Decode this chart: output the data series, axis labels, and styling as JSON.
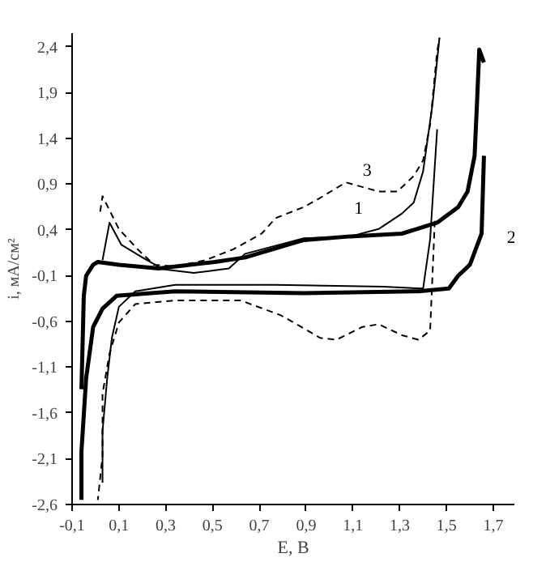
{
  "chart_data": {
    "type": "line",
    "xlabel": "E, B",
    "ylabel": "i, мА/см²",
    "grid": false,
    "legend": false,
    "marker": "none",
    "xlim": [
      -0.1,
      1.79
    ],
    "ylim": [
      -2.6,
      2.55
    ],
    "xticks": [
      {
        "value": -0.1,
        "label": "-0,1"
      },
      {
        "value": 0.1,
        "label": "0,1"
      },
      {
        "value": 0.3,
        "label": "0,3"
      },
      {
        "value": 0.5,
        "label": "0,5"
      },
      {
        "value": 0.7,
        "label": "0,7"
      },
      {
        "value": 0.9,
        "label": "0,9"
      },
      {
        "value": 1.1,
        "label": "1,1"
      },
      {
        "value": 1.3,
        "label": "1,3"
      },
      {
        "value": 1.5,
        "label": "1,5"
      },
      {
        "value": 1.7,
        "label": "1,7"
      }
    ],
    "yticks": [
      {
        "value": 2.4,
        "label": "2,4"
      },
      {
        "value": 1.9,
        "label": "1,9"
      },
      {
        "value": 1.4,
        "label": "1,4"
      },
      {
        "value": 0.9,
        "label": "0,9"
      },
      {
        "value": 0.4,
        "label": "0,4"
      },
      {
        "value": -0.1,
        "label": "-0,1"
      },
      {
        "value": -0.6,
        "label": "-0,6"
      },
      {
        "value": -1.1,
        "label": "-1,1"
      },
      {
        "value": -1.6,
        "label": "-1,6"
      },
      {
        "value": -2.1,
        "label": "-2,1"
      },
      {
        "value": -2.6,
        "label": "-2,6"
      }
    ],
    "series": [
      {
        "name": "1",
        "color": "#000000",
        "line_style": "solid",
        "x": [
          0.03,
          0.06,
          0.11,
          0.2,
          0.29,
          0.42,
          0.57,
          0.64,
          0.89,
          1.09,
          1.21,
          1.31,
          1.36,
          1.4,
          1.44,
          1.47
        ],
        "values": [
          0.07,
          0.48,
          0.24,
          0.1,
          -0.03,
          -0.07,
          -0.02,
          0.14,
          0.31,
          0.33,
          0.41,
          0.58,
          0.7,
          1.04,
          1.77,
          2.5
        ]
      },
      {
        "color": "#000000",
        "line_style": "solid",
        "x": [
          1.46,
          1.43,
          1.4,
          1.23,
          0.77,
          0.34,
          0.17,
          0.1,
          0.07,
          0.05,
          0.03,
          0.03
        ],
        "values": [
          1.5,
          0.3,
          -0.24,
          -0.22,
          -0.2,
          -0.2,
          -0.27,
          -0.44,
          -0.78,
          -1.22,
          -1.8,
          -2.36
        ]
      },
      {
        "name": "2",
        "color": "#000000",
        "line_style": "solid",
        "x": [
          -0.06,
          -0.05,
          -0.04,
          -0.01,
          0.01,
          0.1,
          0.27,
          0.51,
          0.64,
          0.89,
          1.09,
          1.31,
          1.46,
          1.55,
          1.59,
          1.62,
          1.63,
          1.64,
          1.66
        ],
        "values": [
          -1.34,
          -0.32,
          -0.1,
          0.02,
          0.05,
          0.02,
          -0.02,
          0.05,
          0.1,
          0.29,
          0.33,
          0.36,
          0.48,
          0.65,
          0.82,
          1.21,
          1.77,
          2.37,
          2.23
        ]
      },
      {
        "color": "#000000",
        "line_style": "solid",
        "x": [
          1.66,
          1.65,
          1.6,
          1.55,
          1.51,
          1.38,
          0.89,
          0.34,
          0.09,
          0.03,
          -0.01,
          -0.04,
          -0.06,
          -0.06
        ],
        "values": [
          1.21,
          0.36,
          0.02,
          -0.1,
          -0.24,
          -0.27,
          -0.29,
          -0.27,
          -0.32,
          -0.46,
          -0.66,
          -1.22,
          -2.02,
          -2.55
        ]
      },
      {
        "name": "3",
        "color": "#000000",
        "line_style": "dashed",
        "x": [
          0.02,
          0.03,
          0.1,
          0.18,
          0.25,
          0.34,
          0.47,
          0.59,
          0.71,
          0.77,
          0.89,
          0.96,
          1.07,
          1.14,
          1.21,
          1.29,
          1.36,
          1.4,
          1.43,
          1.46,
          1.47
        ],
        "values": [
          0.6,
          0.77,
          0.41,
          0.19,
          0.02,
          0.0,
          0.07,
          0.19,
          0.36,
          0.53,
          0.65,
          0.75,
          0.92,
          0.87,
          0.82,
          0.82,
          0.99,
          1.16,
          1.55,
          2.35,
          2.5
        ]
      },
      {
        "color": "#000000",
        "line_style": "dashed",
        "x": [
          1.45,
          1.43,
          1.38,
          1.31,
          1.21,
          1.14,
          1.03,
          0.96,
          0.86,
          0.79,
          0.62,
          0.34,
          0.17,
          0.1,
          0.06,
          0.03,
          0.03,
          0.01
        ],
        "values": [
          0.5,
          -0.7,
          -0.8,
          -0.75,
          -0.63,
          -0.66,
          -0.8,
          -0.78,
          -0.63,
          -0.53,
          -0.37,
          -0.37,
          -0.41,
          -0.61,
          -0.95,
          -1.39,
          -2.07,
          -2.55
        ]
      }
    ]
  }
}
